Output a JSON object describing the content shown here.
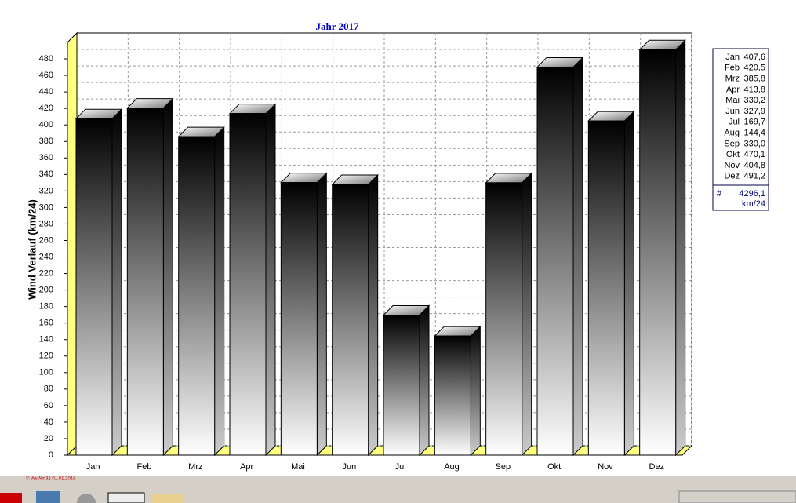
{
  "chart_data": {
    "type": "bar3d",
    "title": "Jahr  2017",
    "y_label": "Wind Verlauf  (km/24)",
    "categories": [
      "Jan",
      "Feb",
      "Mrz",
      "Apr",
      "Mai",
      "Jun",
      "Jul",
      "Aug",
      "Sep",
      "Okt",
      "Nov",
      "Dez"
    ],
    "values": [
      407.6,
      420.5,
      385.8,
      413.8,
      330.2,
      327.9,
      169.7,
      144.4,
      330.0,
      470.1,
      404.8,
      491.2
    ],
    "value_labels": [
      "407,6",
      "420,5",
      "385,8",
      "413,8",
      "330,2",
      "327,9",
      "169,7",
      "144,4",
      "330,0",
      "470,1",
      "404,8",
      "491,2"
    ],
    "total_symbol": "#",
    "total": {
      "value": 4296.1,
      "label": "4296,1"
    },
    "unit": "km/24",
    "ylim": [
      0,
      500
    ],
    "yticks": [
      0,
      20,
      40,
      60,
      80,
      100,
      120,
      140,
      160,
      180,
      200,
      220,
      240,
      260,
      280,
      300,
      320,
      340,
      360,
      380,
      400,
      420,
      440,
      460,
      480
    ],
    "grid": true,
    "footer": "© WsWin32  01.01.2018"
  }
}
